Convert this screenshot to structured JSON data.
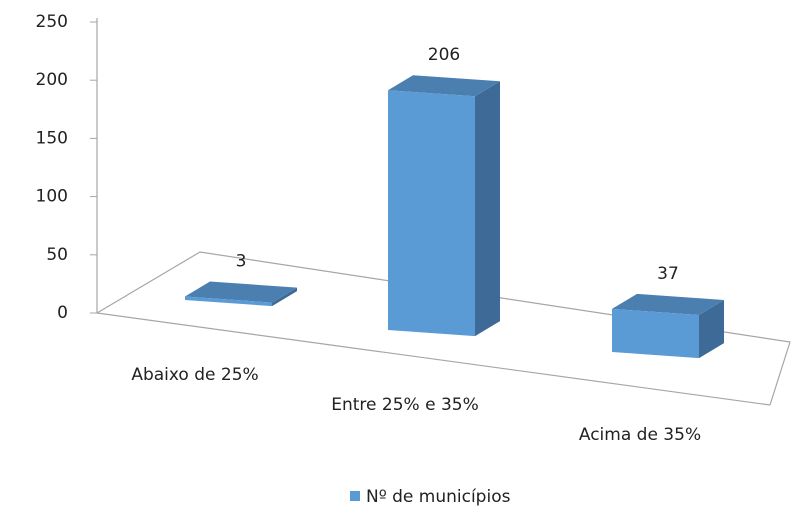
{
  "chart_data": {
    "type": "bar3d",
    "categories": [
      "Abaixo de 25%",
      "Entre 25% e 35%",
      "Acima de 35%"
    ],
    "series": [
      {
        "name": "Nº de municípios",
        "color": "#5b9bd5",
        "values": [
          3,
          206,
          37
        ]
      }
    ],
    "ylim": [
      0,
      250
    ],
    "yticks": [
      0,
      50,
      100,
      150,
      200,
      250
    ]
  }
}
